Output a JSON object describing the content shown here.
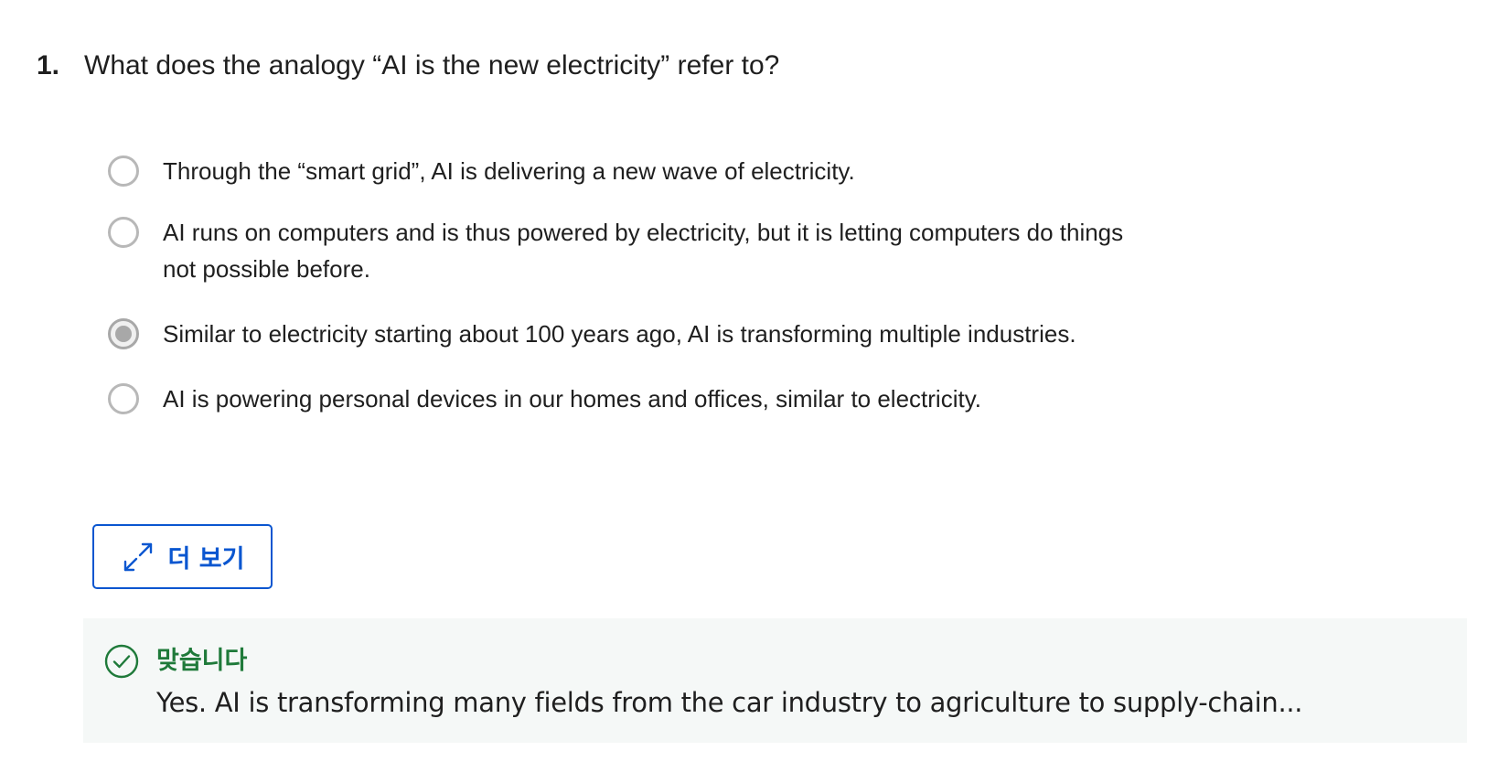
{
  "question": {
    "number": "1.",
    "text": "What does the analogy “AI is the new electricity” refer to?"
  },
  "options": [
    {
      "text": "Through the “smart grid”, AI is delivering a new wave of electricity.",
      "selected": false
    },
    {
      "text": "AI runs on computers and is thus powered by electricity, but it is letting computers do things not possible before.",
      "selected": false
    },
    {
      "text": "Similar to electricity starting about 100 years ago, AI is transforming multiple industries.",
      "selected": true
    },
    {
      "text": "AI is powering personal devices in our homes and offices, similar to electricity.",
      "selected": false
    }
  ],
  "more_button": {
    "label": "더 보기",
    "icon": "expand-icon"
  },
  "feedback": {
    "icon": "check-circle-icon",
    "status": "맞습니다",
    "explanation": "Yes. AI is transforming many fields from the car industry to agriculture to supply-chain..."
  },
  "colors": {
    "accent": "#0a56d0",
    "success": "#1f7a3a",
    "feedback_bg": "#f5f8f7",
    "radio_border": "#b8b8b8"
  }
}
